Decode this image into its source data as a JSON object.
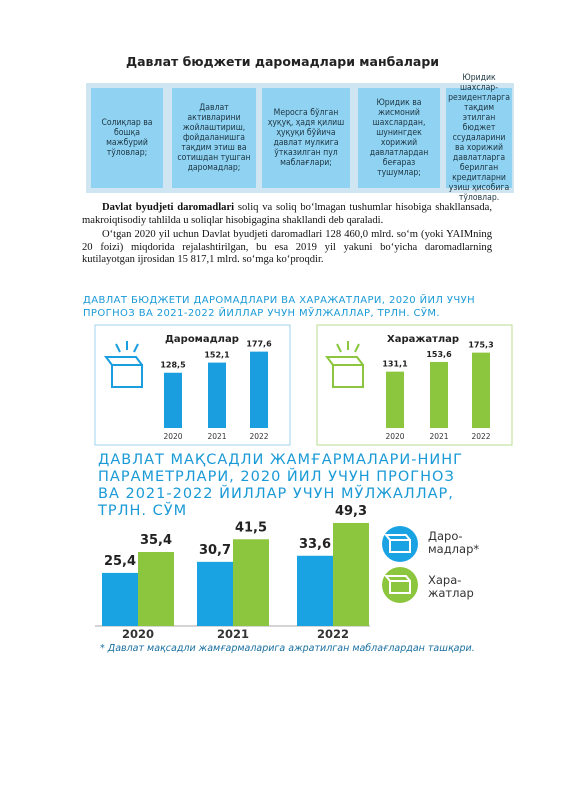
{
  "header": {
    "title": "Давлат бюджети даромадлари манбалари"
  },
  "boxes": [
    "Солиқлар ва бошқа мажбурий тўловлар;",
    "Давлат активларини жойлаштириш, фойдаланишга тақдим этиш ва сотишдан тушган даромадлар;",
    "Меросга бўлган ҳуқуқ, ҳадя қилиш ҳуқуқи бўйича давлат мулкига ўтказилган пул маблағлари;",
    "Юридик ва жисмоний шахслардан, шунингдек хорижий давлатлардан беғараз тушумлар;",
    "Юридик шахслар-резидентларга тақдим этилган бюджет ссудаларини ва хорижий давлатларга берилган кредитларни узиш ҳисобига тўловлар."
  ],
  "paragraphs": [
    {
      "bold": "Davlat byudjeti daromadlari",
      "text": " soliq va soliq bo‘lmagan tushumlar hisobiga shakllansada, makroiqtisodiy tahlilda u soliqlar hisobigagina shakllandi deb qaraladi."
    },
    {
      "text": "O‘tgan 2020 yil uchun Davlat byudjeti daromadlari 128 460,0 mlrd. so‘m (yoki YAIMning 20 foizi) miqdorida rejalashtirilgan, bu esa 2019 yil yakuni bo‘yicha daromadlarning kutilayotgan ijrosidan 15 817,1 mlrd. so‘mga ko‘proqdir."
    }
  ],
  "chart_heading": "ДАВЛАТ БЮДЖЕТИ ДАРОМАДЛАРИ ВА ХАРАЖАТЛАРИ, 2020 ЙИЛ УЧУН ПРОГНОЗ ВА 2021-2022 ЙИЛЛАР УЧУН МЎЛЖАЛЛАР, ТРЛН. СЎМ.",
  "chart_data": [
    {
      "type": "bar",
      "title": "Даромадлар",
      "categories": [
        "2020",
        "2021",
        "2022"
      ],
      "values": [
        128.5,
        152.1,
        177.6
      ],
      "value_labels": [
        "128,5",
        "152,1",
        "177,6"
      ],
      "color": "#1a9ee0"
    },
    {
      "type": "bar",
      "title": "Харажатлар",
      "categories": [
        "2020",
        "2021",
        "2022"
      ],
      "values": [
        131.1,
        153.6,
        175.3
      ],
      "value_labels": [
        "131,1",
        "153,6",
        "175,3"
      ],
      "color": "#8cc63f"
    },
    {
      "type": "grouped_bar",
      "title": "ДАВЛАТ МАҚСАДЛИ ЖАМҒАРМАЛАРИ-НИНГ ПАРАМЕТРЛАРИ, 2020 ЙИЛ УЧУН ПРОГНОЗ ВА 2021-2022 ЙИЛЛАР УЧУН МЎЛЖАЛЛАР, ТРЛН. СЎМ",
      "categories": [
        "2020",
        "2021",
        "2022"
      ],
      "series": [
        {
          "name": "Даро-мадлар*",
          "color": "#1aa3e3",
          "values": [
            25.4,
            30.7,
            33.6
          ],
          "value_labels": [
            "25,4",
            "30,7",
            "33,6"
          ]
        },
        {
          "name": "Хара-жатлар",
          "color": "#8cc63f",
          "values": [
            35.4,
            41.5,
            49.3
          ],
          "value_labels": [
            "35,4",
            "41,5",
            "49,3"
          ]
        }
      ],
      "footnote": "* Давлат мақсадли жамғармаларига ажратилган маблағлардан ташқари."
    }
  ]
}
